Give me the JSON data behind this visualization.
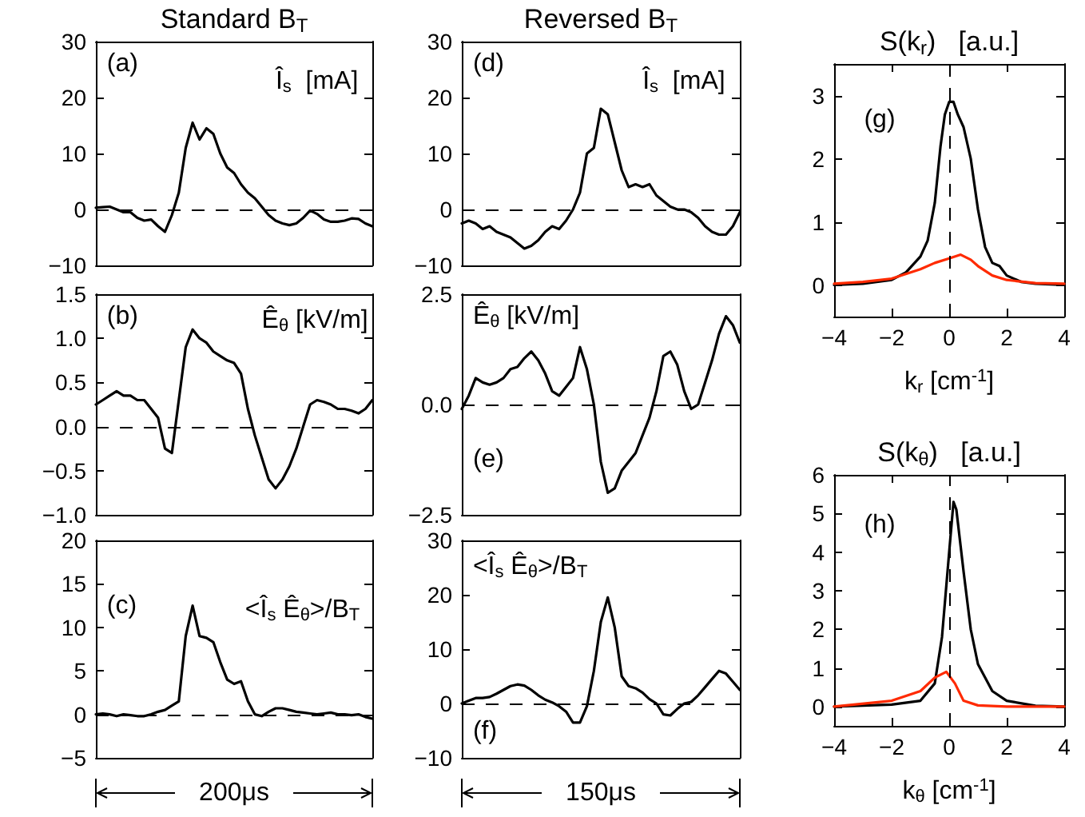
{
  "chart_data": [
    {
      "type": "line",
      "title": "Standard B$_{T}$",
      "annotations": [
        "(a)",
        "Î$_{s}$  [mA]"
      ],
      "categories": [
        null,
        null,
        null,
        null,
        null,
        null,
        null,
        null,
        null,
        null,
        null,
        null,
        null,
        null,
        null,
        null,
        null,
        null,
        null,
        null,
        null,
        null,
        null,
        null,
        null,
        null,
        null,
        null,
        null,
        null,
        null,
        null,
        null,
        null,
        null,
        null,
        null,
        null,
        null,
        null,
        null
      ],
      "color": "#000000",
      "values": [
        0.3,
        0.4,
        0.5,
        0,
        -0.5,
        -0.5,
        -1.5,
        -2,
        -1.8,
        -3,
        -4,
        -1,
        3,
        11,
        15.5,
        12.5,
        14.5,
        13.5,
        10,
        7.5,
        6.5,
        4.5,
        3,
        2,
        0.5,
        -1,
        -2,
        -2.5,
        -2.8,
        -2.5,
        -1.5,
        -0.2,
        -0.8,
        -1.8,
        -2.2,
        -2.2,
        -2,
        -1.6,
        -1.7,
        -2.5,
        -3
      ],
      "ylim": [
        -10,
        30
      ],
      "yticks": [
        -10,
        0,
        10,
        20,
        30
      ],
      "tick_labels": "y",
      "marker": "none",
      "ref_lines": [
        {
          "axis": "y",
          "value": 0,
          "line_style": "dashed",
          "color": "#000000"
        }
      ]
    },
    {
      "type": "line",
      "annotations": [
        "(b)",
        "Ê$_{θ}$ [kV/m]"
      ],
      "categories": [
        null,
        null,
        null,
        null,
        null,
        null,
        null,
        null,
        null,
        null,
        null,
        null,
        null,
        null,
        null,
        null,
        null,
        null,
        null,
        null,
        null,
        null,
        null,
        null,
        null,
        null,
        null,
        null,
        null,
        null,
        null,
        null,
        null,
        null,
        null,
        null,
        null,
        null,
        null,
        null,
        null
      ],
      "color": "#000000",
      "values": [
        0.25,
        0.3,
        0.35,
        0.4,
        0.35,
        0.35,
        0.3,
        0.3,
        0.2,
        0.1,
        -0.25,
        -0.3,
        0.3,
        0.9,
        1.1,
        1.0,
        0.95,
        0.85,
        0.8,
        0.75,
        0.72,
        0.6,
        0.2,
        -0.1,
        -0.35,
        -0.6,
        -0.7,
        -0.6,
        -0.45,
        -0.25,
        0,
        0.25,
        0.3,
        0.28,
        0.25,
        0.2,
        0.2,
        0.18,
        0.15,
        0.2,
        0.3
      ],
      "ylim": [
        -1,
        1.5
      ],
      "yticks": [
        {
          "value": -1,
          "label": "−1.0"
        },
        -0.5,
        {
          "value": 0,
          "label": "0.0"
        },
        0.5,
        {
          "value": 1,
          "label": "1.0"
        },
        1.5
      ],
      "tick_labels": "y",
      "marker": "none",
      "ref_lines": [
        {
          "axis": "y",
          "value": 0,
          "line_style": "dashed",
          "color": "#000000"
        }
      ]
    },
    {
      "type": "line",
      "annotations": [
        "(c)",
        "<Î$_{s}$ Ê$_{θ}$>/B$_{T}$",
        "200μs"
      ],
      "categories": [
        null,
        null,
        null,
        null,
        null,
        null,
        null,
        null,
        null,
        null,
        null,
        null,
        null,
        null,
        null,
        null,
        null,
        null,
        null,
        null,
        null,
        null,
        null,
        null,
        null,
        null,
        null,
        null,
        null,
        null,
        null,
        null,
        null,
        null,
        null,
        null,
        null,
        null,
        null,
        null,
        null
      ],
      "color": "#000000",
      "values": [
        0,
        0.1,
        0,
        -0.2,
        0,
        -0.1,
        -0.2,
        -0.2,
        0,
        0.3,
        0.5,
        1,
        1.5,
        9,
        12.5,
        9,
        8.8,
        8.3,
        6,
        4,
        3.5,
        3.8,
        1.5,
        0,
        -0.2,
        0.3,
        0.7,
        0.7,
        0.5,
        0.3,
        0.2,
        0.1,
        0,
        0.1,
        0.2,
        0,
        0,
        -0.1,
        0,
        -0.3,
        -0.5
      ],
      "ylim": [
        -5,
        20
      ],
      "yticks": [
        -5,
        0,
        5,
        10,
        15,
        20
      ],
      "tick_labels": "y",
      "marker": "none",
      "ref_lines": [
        {
          "axis": "y",
          "value": 0,
          "line_style": "dashed",
          "color": "#000000"
        }
      ]
    },
    {
      "type": "line",
      "title": "Reversed B$_{T}$",
      "annotations": [
        "(d)",
        "Î$_{s}$  [mA]"
      ],
      "categories": [
        null,
        null,
        null,
        null,
        null,
        null,
        null,
        null,
        null,
        null,
        null,
        null,
        null,
        null,
        null,
        null,
        null,
        null,
        null,
        null,
        null,
        null,
        null,
        null,
        null,
        null,
        null,
        null,
        null,
        null,
        null,
        null,
        null,
        null,
        null,
        null,
        null,
        null,
        null,
        null,
        null
      ],
      "color": "#000000",
      "values": [
        -2.5,
        -2,
        -2.5,
        -3.5,
        -3,
        -4,
        -4.5,
        -5,
        -6,
        -7,
        -6.5,
        -5.5,
        -4,
        -3,
        -3.5,
        -2,
        0,
        3,
        10,
        11,
        18,
        17,
        12,
        7,
        4,
        4.5,
        4,
        4.5,
        2.5,
        1.5,
        0.5,
        0,
        0,
        -0.5,
        -1.5,
        -3,
        -4,
        -4.5,
        -4.5,
        -3,
        -0.5
      ],
      "ylim": [
        -10,
        30
      ],
      "yticks": [
        -10,
        0,
        10,
        20,
        30
      ],
      "tick_labels": "y",
      "marker": "none",
      "ref_lines": [
        {
          "axis": "y",
          "value": 0,
          "line_style": "dashed",
          "color": "#000000"
        }
      ]
    },
    {
      "type": "line",
      "annotations": [
        "Ê$_{θ}$ [kV/m]",
        "(e)"
      ],
      "categories": [
        null,
        null,
        null,
        null,
        null,
        null,
        null,
        null,
        null,
        null,
        null,
        null,
        null,
        null,
        null,
        null,
        null,
        null,
        null,
        null,
        null,
        null,
        null,
        null,
        null,
        null,
        null,
        null,
        null,
        null,
        null,
        null,
        null,
        null,
        null,
        null,
        null,
        null,
        null,
        null,
        null
      ],
      "color": "#000000",
      "values": [
        -0.1,
        0.2,
        0.6,
        0.5,
        0.45,
        0.5,
        0.6,
        0.8,
        0.85,
        1.05,
        1.2,
        1.0,
        0.7,
        0.3,
        0.2,
        0.4,
        0.6,
        1.3,
        0.8,
        0,
        -1.3,
        -2.0,
        -1.9,
        -1.5,
        -1.3,
        -1.1,
        -0.7,
        -0.3,
        0.3,
        1.1,
        1.2,
        0.9,
        0.3,
        -0.1,
        0,
        0.5,
        1.0,
        1.6,
        2.0,
        1.8,
        1.4
      ],
      "ylim": [
        -2.5,
        2.5
      ],
      "yticks": [
        {
          "value": -2.5,
          "label": "−2.5"
        },
        {
          "value": 0,
          "label": "0.0"
        },
        2.5
      ],
      "tick_labels": "y",
      "marker": "none",
      "ref_lines": [
        {
          "axis": "y",
          "value": 0,
          "line_style": "dashed",
          "color": "#000000"
        }
      ]
    },
    {
      "type": "line",
      "annotations": [
        "<Î$_{s}$ Ê$_{θ}$>/B$_{T}$",
        "(f)",
        "150μs"
      ],
      "categories": [
        null,
        null,
        null,
        null,
        null,
        null,
        null,
        null,
        null,
        null,
        null,
        null,
        null,
        null,
        null,
        null,
        null,
        null,
        null,
        null,
        null,
        null,
        null,
        null,
        null,
        null,
        null,
        null,
        null,
        null,
        null,
        null,
        null,
        null,
        null,
        null,
        null,
        null,
        null,
        null,
        null
      ],
      "color": "#000000",
      "values": [
        0,
        0.5,
        1,
        1,
        1.2,
        1.8,
        2.5,
        3.2,
        3.5,
        3.3,
        2.5,
        1.5,
        0.7,
        0.2,
        -0.5,
        -1.5,
        -3.5,
        -3.5,
        -0.5,
        6,
        15,
        19.5,
        14,
        5,
        3.2,
        2.8,
        2,
        0.8,
        0,
        -2,
        -2.2,
        -1,
        0,
        0.3,
        1.5,
        3,
        4.5,
        6,
        5.5,
        4,
        2.5
      ],
      "ylim": [
        -10,
        30
      ],
      "yticks": [
        -10,
        0,
        10,
        20,
        30
      ],
      "tick_labels": "y",
      "marker": "none",
      "ref_lines": [
        {
          "axis": "y",
          "value": 0,
          "line_style": "dashed",
          "color": "#000000"
        }
      ]
    },
    {
      "type": "line",
      "title": "S(k$_{r}$)   [a.u.]",
      "xlabel": "k$_{r}$ [cm$^{-1}$]",
      "annotations": [
        "(g)"
      ],
      "marker": "none",
      "series": [
        {
          "color": "#000000",
          "x": [
            -4,
            -3,
            -2,
            -1.5,
            -1,
            -0.75,
            -0.5,
            -0.3,
            -0.15,
            0,
            0.15,
            0.3,
            0.5,
            0.75,
            1,
            1.25,
            1.5,
            1.75,
            2,
            2.5,
            3,
            4
          ],
          "values": [
            0,
            0.02,
            0.08,
            0.2,
            0.45,
            0.7,
            1.3,
            2.2,
            2.7,
            2.9,
            2.9,
            2.7,
            2.5,
            2.0,
            1.2,
            0.6,
            0.35,
            0.3,
            0.15,
            0.05,
            0.02,
            0
          ]
        },
        {
          "color": "#ff2a00",
          "x": [
            -4,
            -3,
            -2,
            -1,
            -0.5,
            0,
            0.4,
            0.75,
            1,
            1.5,
            2,
            3,
            4
          ],
          "values": [
            0.02,
            0.05,
            0.1,
            0.25,
            0.35,
            0.42,
            0.48,
            0.4,
            0.3,
            0.15,
            0.08,
            0.03,
            0.02
          ]
        }
      ],
      "xlim": [
        -4,
        4
      ],
      "xticks": [
        -4,
        -2,
        0,
        2,
        4
      ],
      "ylim": [
        -0.5,
        3.5
      ],
      "yticks": [
        0,
        1,
        2,
        3
      ],
      "ref_lines": [
        {
          "axis": "x",
          "value": 0,
          "line_style": "dashed",
          "color": "#000000"
        }
      ]
    },
    {
      "type": "line",
      "title": "S(k$_{θ}$)   [a.u.]",
      "xlabel": "k$_{θ}$ [cm$^{-1}$]",
      "annotations": [
        "(h)"
      ],
      "marker": "none",
      "series": [
        {
          "color": "#000000",
          "x": [
            -4,
            -2,
            -1,
            -0.5,
            -0.25,
            0,
            0.15,
            0.25,
            0.5,
            0.75,
            1,
            1.5,
            2,
            3,
            4
          ],
          "values": [
            0,
            0.05,
            0.15,
            0.6,
            1.8,
            4,
            5.3,
            5.1,
            3.5,
            2.0,
            1.1,
            0.4,
            0.15,
            0.02,
            0
          ]
        },
        {
          "color": "#ff2a00",
          "x": [
            -4,
            -2,
            -1,
            -0.5,
            -0.1,
            0.2,
            0.5,
            1,
            2,
            4
          ],
          "values": [
            0,
            0.15,
            0.4,
            0.75,
            0.9,
            0.6,
            0.15,
            0.03,
            0,
            0
          ]
        }
      ],
      "xlim": [
        -4,
        4
      ],
      "xticks": [
        -4,
        -2,
        0,
        2,
        4
      ],
      "ylim": [
        -0.5,
        6
      ],
      "yticks": [
        0,
        1,
        2,
        3,
        4,
        5,
        6
      ],
      "ref_lines": [
        {
          "axis": "x",
          "value": 0,
          "line_style": "dashed",
          "color": "#000000"
        }
      ]
    }
  ]
}
